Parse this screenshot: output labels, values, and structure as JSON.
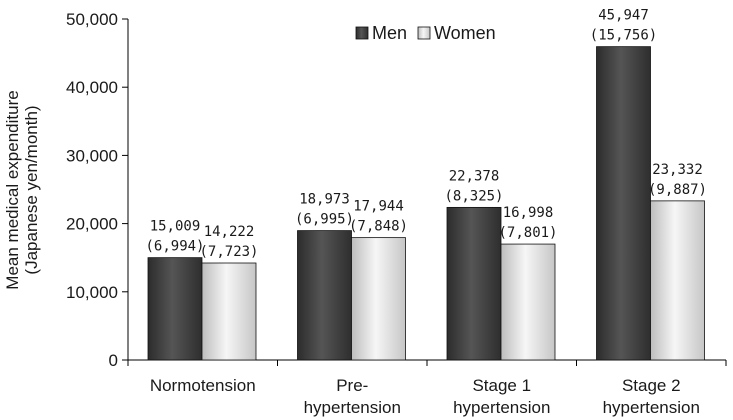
{
  "chart_data": {
    "type": "bar",
    "categories": [
      [
        "Normotension"
      ],
      [
        "Pre-",
        "hypertension"
      ],
      [
        "Stage 1",
        "hypertension"
      ],
      [
        "Stage 2",
        "hypertension"
      ]
    ],
    "series": [
      {
        "name": "Men",
        "values": [
          15009,
          18973,
          22378,
          45947
        ],
        "value_labels": [
          "15,009",
          "18,973",
          "22,378",
          "45,947"
        ],
        "sd_labels": [
          "(6,994)",
          "(6,995)",
          "(8,325)",
          "(15,756)"
        ],
        "color": "#404040"
      },
      {
        "name": "Women",
        "values": [
          14222,
          17944,
          16998,
          23332
        ],
        "value_labels": [
          "14,222",
          "17,944",
          "16,998",
          "23,332"
        ],
        "sd_labels": [
          "(7,723)",
          "(7,848)",
          "(7,801)",
          "(9,887)"
        ],
        "color": "#e4e4e4"
      }
    ],
    "ylabel": [
      "Mean medical expenditure",
      "(Japanese yen/month)"
    ],
    "ylim": [
      0,
      50000
    ],
    "yticks": [
      0,
      10000,
      20000,
      30000,
      40000,
      50000
    ],
    "ytick_labels": [
      "0",
      "10,000",
      "20,000",
      "30,000",
      "40,000",
      "50,000"
    ],
    "grid": false,
    "legend_position": "top-center"
  }
}
